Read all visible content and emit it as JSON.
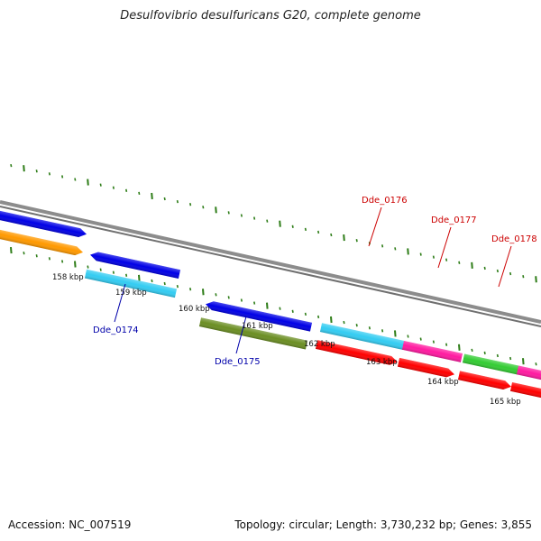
{
  "title": "Desulfovibrio desulfuricans G20, complete genome",
  "footer": {
    "accession": "Accession: NC_007519",
    "stats": "Topology: circular; Length: 3,730,232 bp; Genes: 3,855"
  },
  "colors": {
    "tick": "#2e7d18",
    "backbone": "#888888",
    "label_red": "#cc0000",
    "label_blue": "#0000aa"
  },
  "scale_labels": [
    "158 kbp",
    "159 kbp",
    "160 kbp",
    "161 kbp",
    "162 kbp",
    "163 kbp",
    "164 kbp",
    "165 kbp"
  ],
  "gene_labels": [
    {
      "name": "Dde_0174",
      "color": "#0000aa"
    },
    {
      "name": "Dde_0175",
      "color": "#0000aa"
    },
    {
      "name": "Dde_0176",
      "color": "#cc0000"
    },
    {
      "name": "Dde_0177",
      "color": "#cc0000"
    },
    {
      "name": "Dde_0178",
      "color": "#cc0000"
    }
  ],
  "features": [
    {
      "name": "feature-blue-1",
      "color": "#0000e6"
    },
    {
      "name": "feature-orange-1",
      "color": "#ff9900"
    },
    {
      "name": "feature-blue-2",
      "color": "#0000e6"
    },
    {
      "name": "feature-cyan-1",
      "color": "#33ccf2"
    },
    {
      "name": "feature-blue-3",
      "color": "#0000e6"
    },
    {
      "name": "feature-olive-1",
      "color": "#6b8e23"
    },
    {
      "name": "feature-cyan-2",
      "color": "#33ccf2"
    },
    {
      "name": "feature-magenta-1",
      "color": "#ff1aa0"
    },
    {
      "name": "feature-green-1",
      "color": "#33cc33"
    },
    {
      "name": "feature-magenta-2",
      "color": "#ff1aa0"
    },
    {
      "name": "feature-red-1",
      "color": "#ff0000"
    },
    {
      "name": "feature-red-2",
      "color": "#ff0000"
    },
    {
      "name": "feature-red-3",
      "color": "#ff0000"
    },
    {
      "name": "feature-red-4",
      "color": "#ff0000"
    }
  ]
}
